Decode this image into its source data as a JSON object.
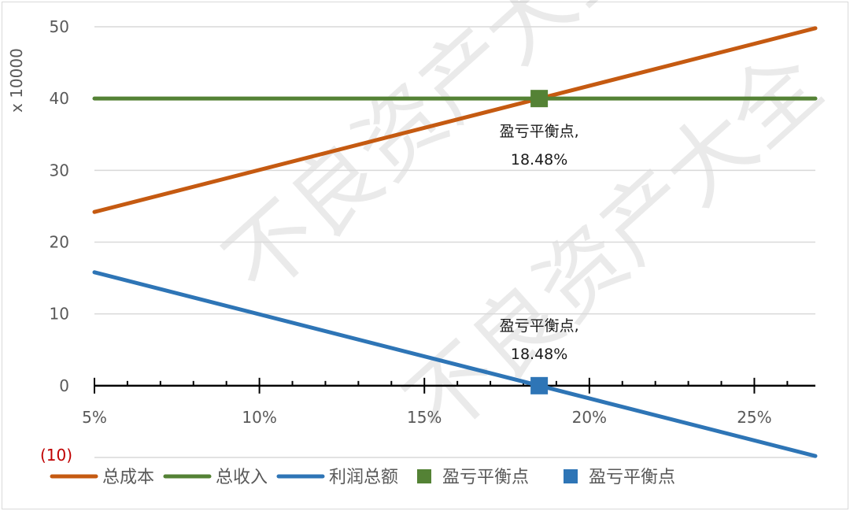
{
  "chart_data": {
    "type": "line",
    "title": "",
    "xlabel": "",
    "ylabel": "x 10000",
    "xlim": [
      5,
      26.85
    ],
    "ylim": [
      -10,
      50
    ],
    "y_ticks": [
      {
        "value": 50,
        "label": "50"
      },
      {
        "value": 40,
        "label": "40"
      },
      {
        "value": 30,
        "label": "30"
      },
      {
        "value": 20,
        "label": "20"
      },
      {
        "value": 10,
        "label": "10"
      },
      {
        "value": 0,
        "label": "0"
      },
      {
        "value": -10,
        "label": "(10)"
      }
    ],
    "x_ticks": [
      {
        "value": 5,
        "label": "5%"
      },
      {
        "value": 10,
        "label": "10%"
      },
      {
        "value": 15,
        "label": "15%"
      },
      {
        "value": 20,
        "label": "20%"
      },
      {
        "value": 25,
        "label": "25%"
      }
    ],
    "grid": true,
    "legend_placement": "bottom",
    "series": [
      {
        "name": "总成本",
        "kind": "line",
        "color": "#C55A11",
        "x": [
          5,
          26.85
        ],
        "y": [
          24.2,
          49.8
        ]
      },
      {
        "name": "总收入",
        "kind": "line",
        "color": "#548235",
        "x": [
          5,
          26.85
        ],
        "y": [
          40,
          40
        ]
      },
      {
        "name": "利润总额",
        "kind": "line",
        "color": "#2E75B6",
        "x": [
          5,
          26.85
        ],
        "y": [
          15.8,
          -9.8
        ]
      },
      {
        "name": "盈亏平衡点",
        "kind": "marker",
        "color": "#548235",
        "x": [
          18.48
        ],
        "y": [
          40
        ],
        "label_line1": "盈亏平衡点,",
        "label_line2": "18.48%",
        "label_position": "below"
      },
      {
        "name": "盈亏平衡点",
        "kind": "marker",
        "color": "#2E75B6",
        "x": [
          18.48
        ],
        "y": [
          0
        ],
        "label_line1": "盈亏平衡点,",
        "label_line2": "18.48%",
        "label_position": "above"
      }
    ],
    "negative_label_color": "#C00000"
  },
  "watermark": "不良资产大全"
}
